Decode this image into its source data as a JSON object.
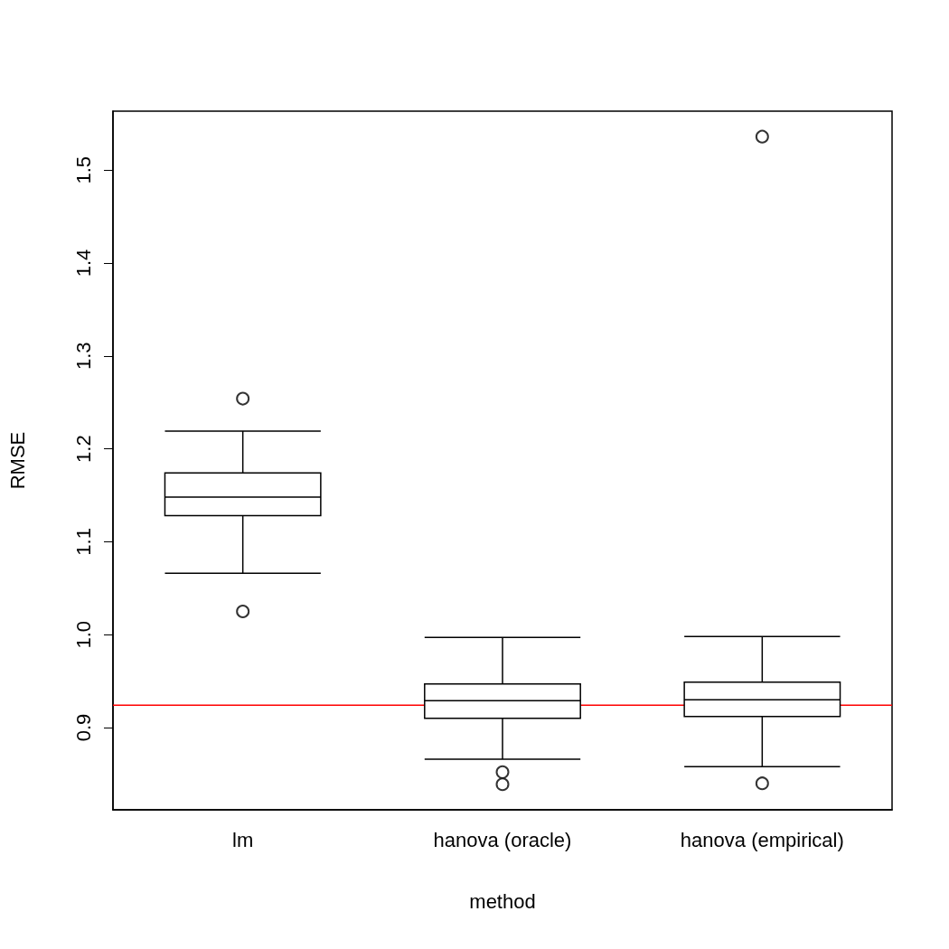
{
  "chart_data": {
    "type": "box",
    "xlabel": "method",
    "ylabel": "RMSE",
    "categories": [
      "lm",
      "hanova (oracle)",
      "hanova (empirical)"
    ],
    "boxes": [
      {
        "low": 1.066,
        "q1": 1.128,
        "median": 1.148,
        "q3": 1.174,
        "high": 1.219,
        "outliers": [
          1.254,
          1.025
        ]
      },
      {
        "low": 0.866,
        "q1": 0.91,
        "median": 0.929,
        "q3": 0.947,
        "high": 0.997,
        "outliers": [
          0.852,
          0.839
        ]
      },
      {
        "low": 0.858,
        "q1": 0.912,
        "median": 0.93,
        "q3": 0.949,
        "high": 0.998,
        "outliers": [
          1.536,
          0.84
        ]
      }
    ],
    "color": "#000000",
    "ylim": [
      0.8115,
      1.5634
    ],
    "yticks": [
      0.9,
      {
        "value": 1,
        "label": "1.0"
      },
      1.1,
      1.2,
      1.3,
      1.4,
      1.5
    ],
    "ref_lines": [
      {
        "axis": "y",
        "value": 0.924,
        "color": "#ff0000"
      }
    ],
    "grid": false,
    "marker": "circle"
  }
}
